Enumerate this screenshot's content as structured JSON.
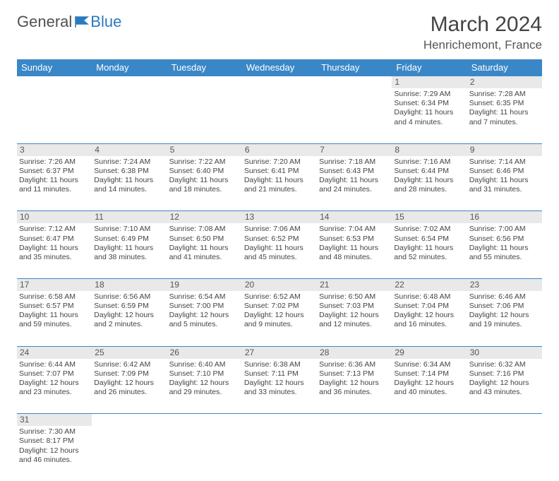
{
  "logo": {
    "part1": "General",
    "part2": "Blue"
  },
  "title": "March 2024",
  "location": "Henrichemont, France",
  "header_bg": "#3a87c8",
  "days_of_week": [
    "Sunday",
    "Monday",
    "Tuesday",
    "Wednesday",
    "Thursday",
    "Friday",
    "Saturday"
  ],
  "weeks": [
    [
      null,
      null,
      null,
      null,
      null,
      {
        "num": "1",
        "sunrise": "Sunrise: 7:29 AM",
        "sunset": "Sunset: 6:34 PM",
        "daylight1": "Daylight: 11 hours",
        "daylight2": "and 4 minutes."
      },
      {
        "num": "2",
        "sunrise": "Sunrise: 7:28 AM",
        "sunset": "Sunset: 6:35 PM",
        "daylight1": "Daylight: 11 hours",
        "daylight2": "and 7 minutes."
      }
    ],
    [
      {
        "num": "3",
        "sunrise": "Sunrise: 7:26 AM",
        "sunset": "Sunset: 6:37 PM",
        "daylight1": "Daylight: 11 hours",
        "daylight2": "and 11 minutes."
      },
      {
        "num": "4",
        "sunrise": "Sunrise: 7:24 AM",
        "sunset": "Sunset: 6:38 PM",
        "daylight1": "Daylight: 11 hours",
        "daylight2": "and 14 minutes."
      },
      {
        "num": "5",
        "sunrise": "Sunrise: 7:22 AM",
        "sunset": "Sunset: 6:40 PM",
        "daylight1": "Daylight: 11 hours",
        "daylight2": "and 18 minutes."
      },
      {
        "num": "6",
        "sunrise": "Sunrise: 7:20 AM",
        "sunset": "Sunset: 6:41 PM",
        "daylight1": "Daylight: 11 hours",
        "daylight2": "and 21 minutes."
      },
      {
        "num": "7",
        "sunrise": "Sunrise: 7:18 AM",
        "sunset": "Sunset: 6:43 PM",
        "daylight1": "Daylight: 11 hours",
        "daylight2": "and 24 minutes."
      },
      {
        "num": "8",
        "sunrise": "Sunrise: 7:16 AM",
        "sunset": "Sunset: 6:44 PM",
        "daylight1": "Daylight: 11 hours",
        "daylight2": "and 28 minutes."
      },
      {
        "num": "9",
        "sunrise": "Sunrise: 7:14 AM",
        "sunset": "Sunset: 6:46 PM",
        "daylight1": "Daylight: 11 hours",
        "daylight2": "and 31 minutes."
      }
    ],
    [
      {
        "num": "10",
        "sunrise": "Sunrise: 7:12 AM",
        "sunset": "Sunset: 6:47 PM",
        "daylight1": "Daylight: 11 hours",
        "daylight2": "and 35 minutes."
      },
      {
        "num": "11",
        "sunrise": "Sunrise: 7:10 AM",
        "sunset": "Sunset: 6:49 PM",
        "daylight1": "Daylight: 11 hours",
        "daylight2": "and 38 minutes."
      },
      {
        "num": "12",
        "sunrise": "Sunrise: 7:08 AM",
        "sunset": "Sunset: 6:50 PM",
        "daylight1": "Daylight: 11 hours",
        "daylight2": "and 41 minutes."
      },
      {
        "num": "13",
        "sunrise": "Sunrise: 7:06 AM",
        "sunset": "Sunset: 6:52 PM",
        "daylight1": "Daylight: 11 hours",
        "daylight2": "and 45 minutes."
      },
      {
        "num": "14",
        "sunrise": "Sunrise: 7:04 AM",
        "sunset": "Sunset: 6:53 PM",
        "daylight1": "Daylight: 11 hours",
        "daylight2": "and 48 minutes."
      },
      {
        "num": "15",
        "sunrise": "Sunrise: 7:02 AM",
        "sunset": "Sunset: 6:54 PM",
        "daylight1": "Daylight: 11 hours",
        "daylight2": "and 52 minutes."
      },
      {
        "num": "16",
        "sunrise": "Sunrise: 7:00 AM",
        "sunset": "Sunset: 6:56 PM",
        "daylight1": "Daylight: 11 hours",
        "daylight2": "and 55 minutes."
      }
    ],
    [
      {
        "num": "17",
        "sunrise": "Sunrise: 6:58 AM",
        "sunset": "Sunset: 6:57 PM",
        "daylight1": "Daylight: 11 hours",
        "daylight2": "and 59 minutes."
      },
      {
        "num": "18",
        "sunrise": "Sunrise: 6:56 AM",
        "sunset": "Sunset: 6:59 PM",
        "daylight1": "Daylight: 12 hours",
        "daylight2": "and 2 minutes."
      },
      {
        "num": "19",
        "sunrise": "Sunrise: 6:54 AM",
        "sunset": "Sunset: 7:00 PM",
        "daylight1": "Daylight: 12 hours",
        "daylight2": "and 5 minutes."
      },
      {
        "num": "20",
        "sunrise": "Sunrise: 6:52 AM",
        "sunset": "Sunset: 7:02 PM",
        "daylight1": "Daylight: 12 hours",
        "daylight2": "and 9 minutes."
      },
      {
        "num": "21",
        "sunrise": "Sunrise: 6:50 AM",
        "sunset": "Sunset: 7:03 PM",
        "daylight1": "Daylight: 12 hours",
        "daylight2": "and 12 minutes."
      },
      {
        "num": "22",
        "sunrise": "Sunrise: 6:48 AM",
        "sunset": "Sunset: 7:04 PM",
        "daylight1": "Daylight: 12 hours",
        "daylight2": "and 16 minutes."
      },
      {
        "num": "23",
        "sunrise": "Sunrise: 6:46 AM",
        "sunset": "Sunset: 7:06 PM",
        "daylight1": "Daylight: 12 hours",
        "daylight2": "and 19 minutes."
      }
    ],
    [
      {
        "num": "24",
        "sunrise": "Sunrise: 6:44 AM",
        "sunset": "Sunset: 7:07 PM",
        "daylight1": "Daylight: 12 hours",
        "daylight2": "and 23 minutes."
      },
      {
        "num": "25",
        "sunrise": "Sunrise: 6:42 AM",
        "sunset": "Sunset: 7:09 PM",
        "daylight1": "Daylight: 12 hours",
        "daylight2": "and 26 minutes."
      },
      {
        "num": "26",
        "sunrise": "Sunrise: 6:40 AM",
        "sunset": "Sunset: 7:10 PM",
        "daylight1": "Daylight: 12 hours",
        "daylight2": "and 29 minutes."
      },
      {
        "num": "27",
        "sunrise": "Sunrise: 6:38 AM",
        "sunset": "Sunset: 7:11 PM",
        "daylight1": "Daylight: 12 hours",
        "daylight2": "and 33 minutes."
      },
      {
        "num": "28",
        "sunrise": "Sunrise: 6:36 AM",
        "sunset": "Sunset: 7:13 PM",
        "daylight1": "Daylight: 12 hours",
        "daylight2": "and 36 minutes."
      },
      {
        "num": "29",
        "sunrise": "Sunrise: 6:34 AM",
        "sunset": "Sunset: 7:14 PM",
        "daylight1": "Daylight: 12 hours",
        "daylight2": "and 40 minutes."
      },
      {
        "num": "30",
        "sunrise": "Sunrise: 6:32 AM",
        "sunset": "Sunset: 7:16 PM",
        "daylight1": "Daylight: 12 hours",
        "daylight2": "and 43 minutes."
      }
    ],
    [
      {
        "num": "31",
        "sunrise": "Sunrise: 7:30 AM",
        "sunset": "Sunset: 8:17 PM",
        "daylight1": "Daylight: 12 hours",
        "daylight2": "and 46 minutes."
      },
      null,
      null,
      null,
      null,
      null,
      null
    ]
  ]
}
